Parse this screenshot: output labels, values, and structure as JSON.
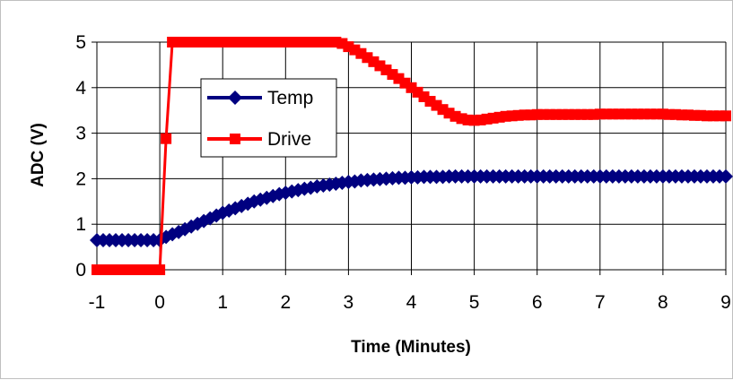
{
  "chart_data": {
    "type": "line",
    "xlabel": "Time (Minutes)",
    "ylabel": "ADC (V)",
    "xlim": [
      -1,
      9
    ],
    "ylim": [
      0,
      5
    ],
    "x_ticks": [
      -1,
      0,
      1,
      2,
      3,
      4,
      5,
      6,
      7,
      8,
      9
    ],
    "y_ticks": [
      0,
      1,
      2,
      3,
      4,
      5
    ],
    "grid": true,
    "legend_position": "upper-left",
    "series": [
      {
        "name": "Temp",
        "color": "#000080",
        "marker": "diamond",
        "x": [
          -1.0,
          -0.9,
          -0.8,
          -0.7,
          -0.6,
          -0.5,
          -0.4,
          -0.3,
          -0.2,
          -0.1,
          0.0,
          0.1,
          0.2,
          0.3,
          0.4,
          0.5,
          0.6,
          0.7,
          0.8,
          0.9,
          1.0,
          1.1,
          1.2,
          1.3,
          1.4,
          1.5,
          1.6,
          1.7,
          1.8,
          1.9,
          2.0,
          2.1,
          2.2,
          2.3,
          2.4,
          2.5,
          2.6,
          2.7,
          2.8,
          2.9,
          3.0,
          3.1,
          3.2,
          3.3,
          3.4,
          3.5,
          3.6,
          3.7,
          3.8,
          3.9,
          4.0,
          4.1,
          4.2,
          4.3,
          4.4,
          4.5,
          4.6,
          4.7,
          4.8,
          4.9,
          5.0,
          5.1,
          5.2,
          5.3,
          5.4,
          5.5,
          5.6,
          5.7,
          5.8,
          5.9,
          6.0,
          6.1,
          6.2,
          6.3,
          6.4,
          6.5,
          6.6,
          6.7,
          6.8,
          6.9,
          7.0,
          7.1,
          7.2,
          7.3,
          7.4,
          7.5,
          7.6,
          7.7,
          7.8,
          7.9,
          8.0,
          8.1,
          8.2,
          8.3,
          8.4,
          8.5,
          8.6,
          8.7,
          8.8,
          8.9,
          9.0
        ],
        "y": [
          0.65,
          0.65,
          0.65,
          0.65,
          0.65,
          0.65,
          0.65,
          0.65,
          0.65,
          0.65,
          0.65,
          0.72,
          0.78,
          0.83,
          0.89,
          0.95,
          1.01,
          1.07,
          1.13,
          1.19,
          1.25,
          1.3,
          1.35,
          1.4,
          1.45,
          1.5,
          1.54,
          1.58,
          1.62,
          1.66,
          1.69,
          1.72,
          1.75,
          1.78,
          1.8,
          1.83,
          1.85,
          1.87,
          1.89,
          1.91,
          1.93,
          1.94,
          1.96,
          1.97,
          1.98,
          1.99,
          2.0,
          2.01,
          2.02,
          2.02,
          2.03,
          2.03,
          2.04,
          2.04,
          2.04,
          2.04,
          2.05,
          2.05,
          2.05,
          2.05,
          2.05,
          2.05,
          2.05,
          2.05,
          2.05,
          2.05,
          2.05,
          2.05,
          2.05,
          2.05,
          2.05,
          2.05,
          2.05,
          2.05,
          2.05,
          2.05,
          2.05,
          2.05,
          2.05,
          2.05,
          2.05,
          2.05,
          2.05,
          2.05,
          2.05,
          2.05,
          2.05,
          2.05,
          2.05,
          2.05,
          2.05,
          2.05,
          2.05,
          2.05,
          2.05,
          2.05,
          2.05,
          2.05,
          2.05,
          2.05,
          2.05
        ]
      },
      {
        "name": "Drive",
        "color": "#ff0000",
        "marker": "square",
        "x": [
          -1.0,
          -0.9,
          -0.8,
          -0.7,
          -0.6,
          -0.5,
          -0.4,
          -0.3,
          -0.2,
          -0.1,
          0.0,
          0.1,
          0.2,
          0.3,
          0.4,
          0.5,
          0.6,
          0.7,
          0.8,
          0.9,
          1.0,
          1.1,
          1.2,
          1.3,
          1.4,
          1.5,
          1.6,
          1.7,
          1.8,
          1.9,
          2.0,
          2.1,
          2.2,
          2.3,
          2.4,
          2.5,
          2.6,
          2.7,
          2.8,
          2.9,
          3.0,
          3.1,
          3.2,
          3.3,
          3.4,
          3.5,
          3.6,
          3.7,
          3.8,
          3.9,
          4.0,
          4.1,
          4.2,
          4.3,
          4.4,
          4.5,
          4.6,
          4.7,
          4.8,
          4.9,
          5.0,
          5.1,
          5.2,
          5.3,
          5.4,
          5.5,
          5.6,
          5.7,
          5.8,
          5.9,
          6.0,
          6.1,
          6.2,
          6.3,
          6.4,
          6.5,
          6.6,
          6.7,
          6.8,
          6.9,
          7.0,
          7.1,
          7.2,
          7.3,
          7.4,
          7.5,
          7.6,
          7.7,
          7.8,
          7.9,
          8.0,
          8.1,
          8.2,
          8.3,
          8.4,
          8.5,
          8.6,
          8.7,
          8.8,
          8.9,
          9.0
        ],
        "y": [
          0.0,
          0.0,
          0.0,
          0.0,
          0.0,
          0.0,
          0.0,
          0.0,
          0.0,
          0.0,
          0.0,
          2.88,
          5.0,
          5.0,
          5.0,
          5.0,
          5.0,
          5.0,
          5.0,
          5.0,
          5.0,
          5.0,
          5.0,
          5.0,
          5.0,
          5.0,
          5.0,
          5.0,
          5.0,
          5.0,
          5.0,
          5.0,
          5.0,
          5.0,
          5.0,
          5.0,
          5.0,
          5.0,
          5.0,
          4.97,
          4.9,
          4.83,
          4.75,
          4.66,
          4.57,
          4.48,
          4.39,
          4.29,
          4.2,
          4.1,
          4.0,
          3.9,
          3.8,
          3.7,
          3.61,
          3.52,
          3.44,
          3.37,
          3.32,
          3.29,
          3.28,
          3.29,
          3.31,
          3.33,
          3.35,
          3.37,
          3.38,
          3.39,
          3.4,
          3.4,
          3.41,
          3.41,
          3.41,
          3.41,
          3.41,
          3.41,
          3.41,
          3.41,
          3.41,
          3.41,
          3.42,
          3.42,
          3.42,
          3.42,
          3.42,
          3.42,
          3.42,
          3.42,
          3.42,
          3.42,
          3.42,
          3.41,
          3.41,
          3.4,
          3.4,
          3.39,
          3.39,
          3.38,
          3.38,
          3.38,
          3.38
        ]
      }
    ]
  }
}
